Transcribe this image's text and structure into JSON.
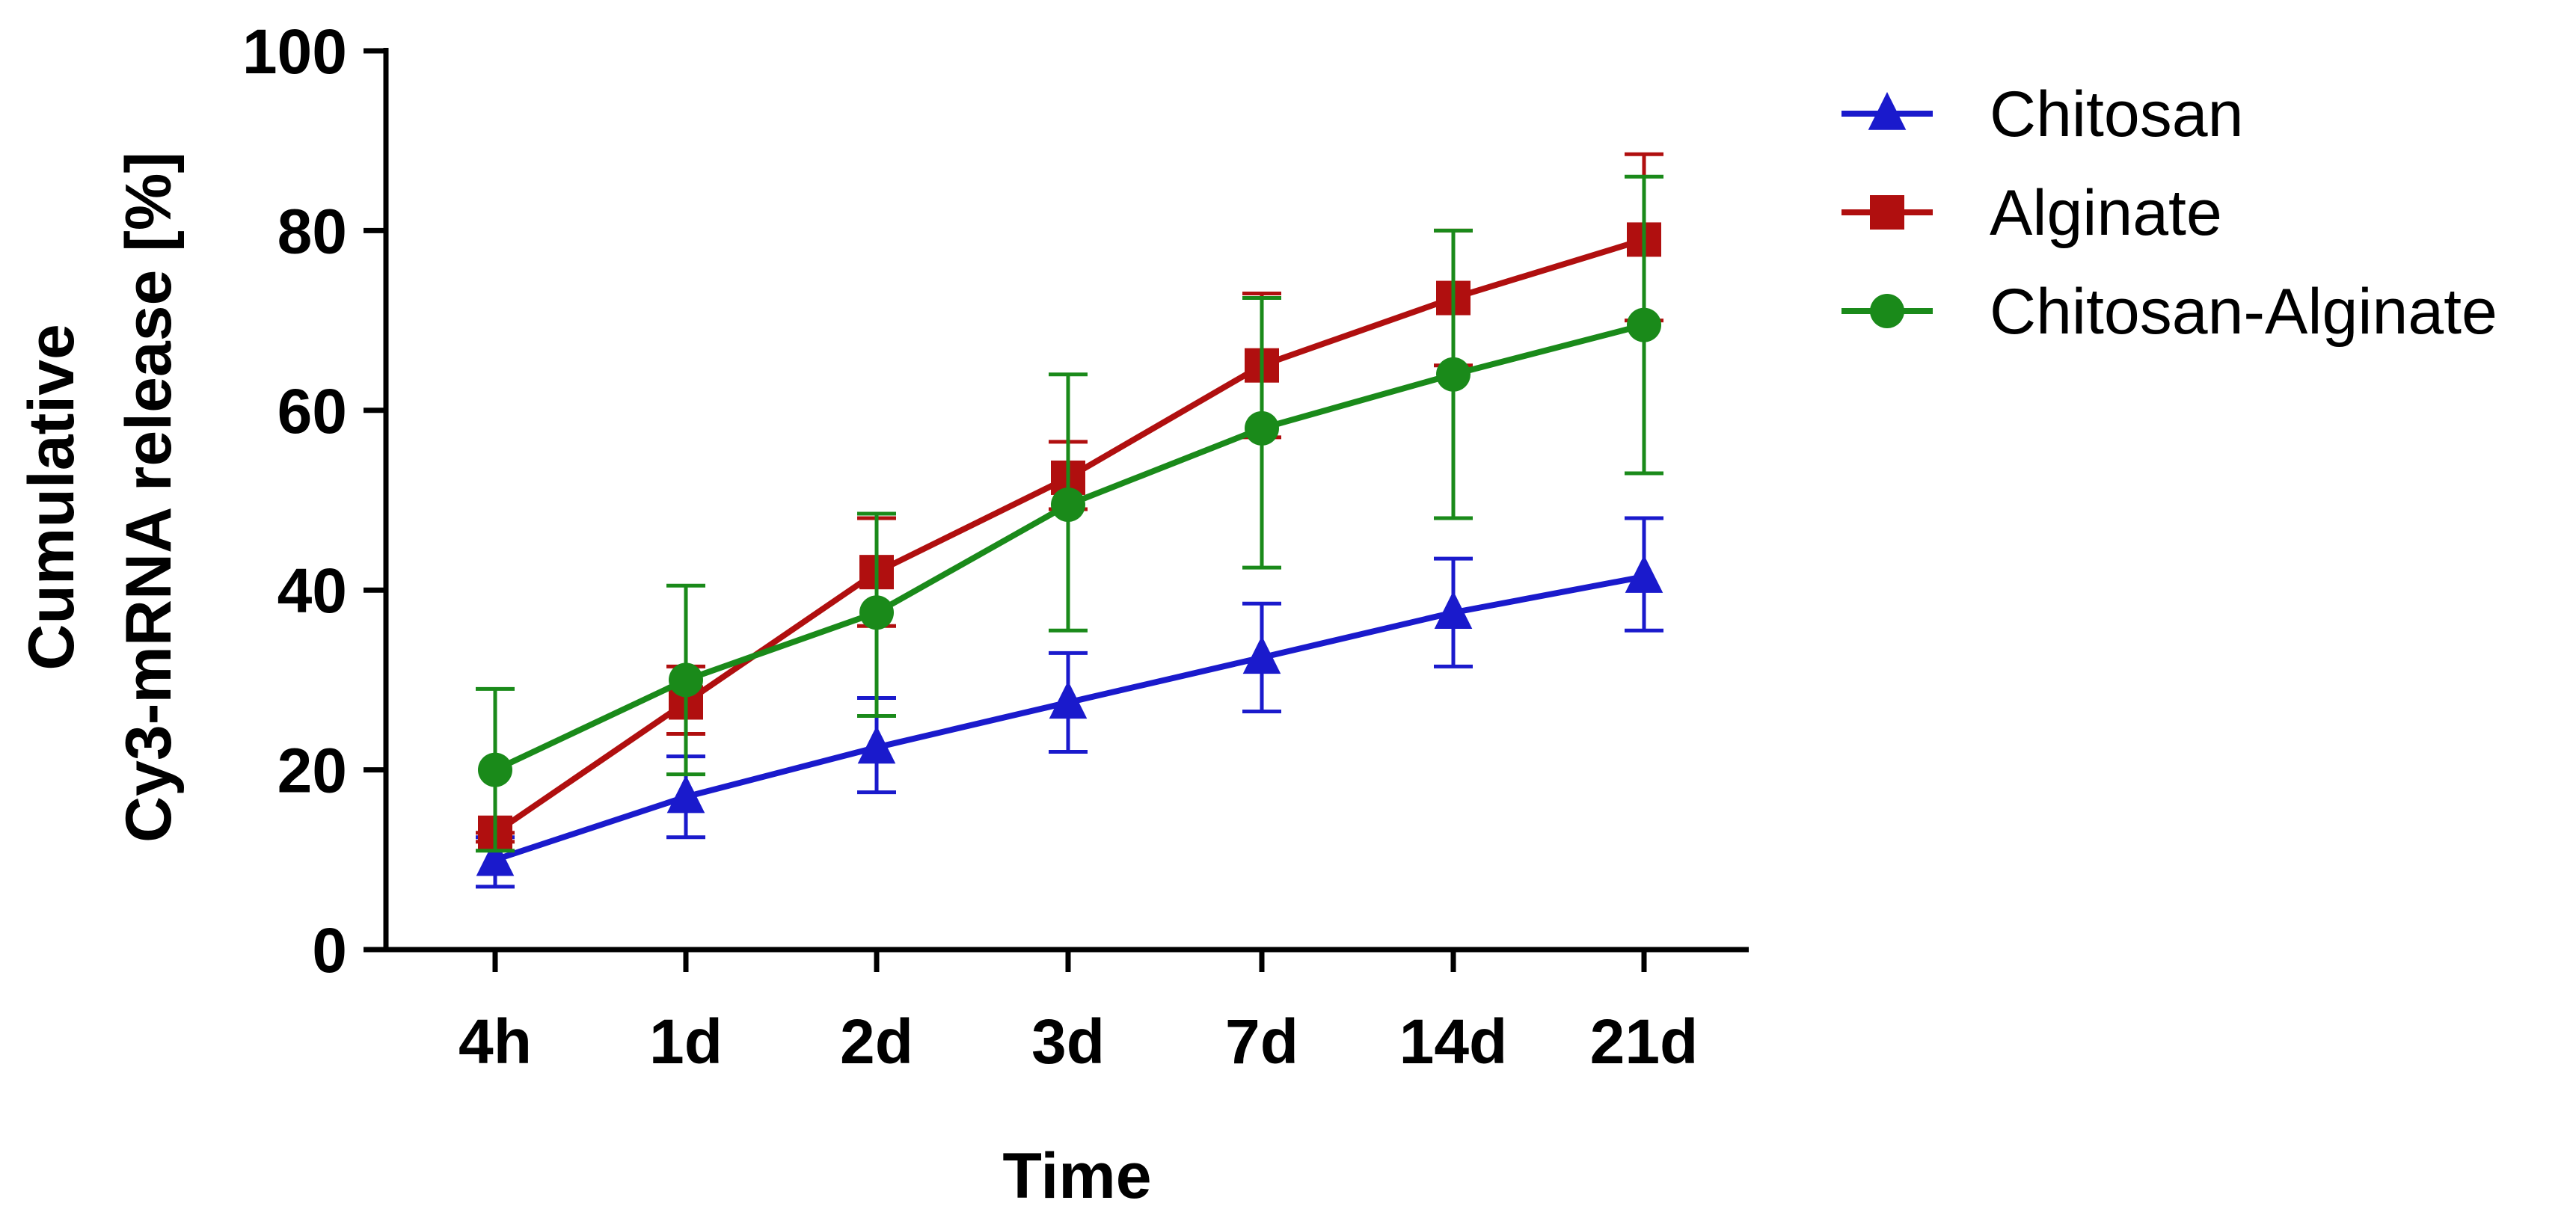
{
  "chart_data": {
    "type": "line",
    "title": "",
    "xlabel": "Time",
    "ylabel_lines": [
      "Cumulative",
      "Cy3-mRNA release [%]"
    ],
    "categories": [
      "4h",
      "1d",
      "2d",
      "3d",
      "7d",
      "14d",
      "21d"
    ],
    "ylim": [
      0,
      100
    ],
    "yticks": [
      0,
      20,
      40,
      60,
      80,
      100
    ],
    "grid": false,
    "legend_position": "top-right outside",
    "series": [
      {
        "name": "Chitosan",
        "color": "#1a1acc",
        "marker": "triangle",
        "values": [
          10,
          17,
          22.5,
          27.5,
          32.5,
          37.5,
          41.5
        ],
        "err_upper": [
          12.5,
          21.5,
          28,
          33,
          38.5,
          43.5,
          48
        ],
        "err_lower": [
          7,
          12.5,
          17.5,
          22,
          26.5,
          31.5,
          35.5
        ]
      },
      {
        "name": "Alginate",
        "color": "#b00f0f",
        "marker": "square",
        "values": [
          13,
          27.5,
          42,
          52.5,
          65,
          72.5,
          79
        ],
        "err_upper": [
          13,
          31.5,
          48,
          56.5,
          73,
          80,
          88.5
        ],
        "err_lower": [
          12,
          24,
          36,
          49,
          57,
          65,
          70
        ]
      },
      {
        "name": "Chitosan-Alginate",
        "color": "#1a8a1a",
        "marker": "circle",
        "values": [
          20,
          30,
          37.5,
          49.5,
          58,
          64,
          69.5
        ],
        "err_upper": [
          29,
          40.5,
          48.5,
          64,
          72.5,
          80,
          86
        ],
        "err_lower": [
          11,
          19.5,
          26,
          35.5,
          42.5,
          48,
          53
        ]
      }
    ]
  }
}
